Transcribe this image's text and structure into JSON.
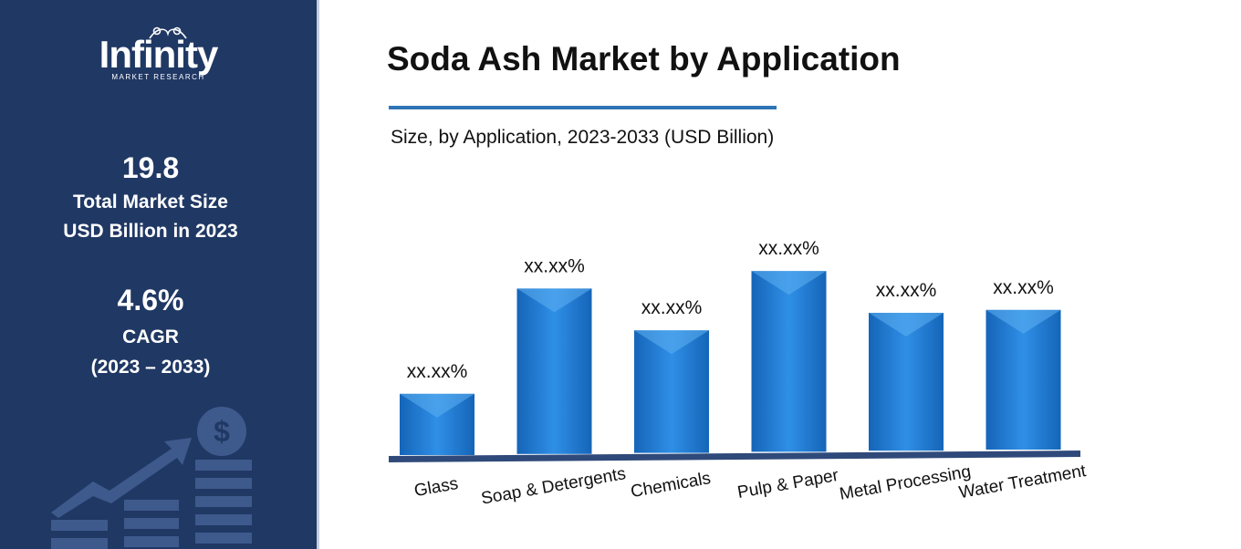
{
  "brand": {
    "name": "Infinity",
    "tagline": "MARKET RESEARCH"
  },
  "stats": {
    "market_size_value": "19.8",
    "market_size_line1": "Total Market Size",
    "market_size_line2": "USD Billion in 2023",
    "cagr_value": "4.6%",
    "cagr_label": "CAGR",
    "cagr_period": "(2023 – 2033)"
  },
  "icons": {
    "finance": "dollar-growth-chart-icon",
    "logo": "infinity-logo-icon"
  },
  "colors": {
    "sidebar": "#203864",
    "bar": "#1f77d0",
    "bar_light": "#4aa3ef",
    "axis": "#2f4a7a",
    "rule": "#2e75b6"
  },
  "chart_data": {
    "type": "bar",
    "title": "Soda Ash Market by Application",
    "subtitle": "Size, by Application, 2023-2033 (USD Billion)",
    "categories": [
      "Glass",
      "Soap & Detergents",
      "Chemicals",
      "Pulp & Paper",
      "Metal Processing",
      "Water Treatment"
    ],
    "values": [
      10,
      27,
      20,
      29.5,
      22.5,
      22.8
    ],
    "data_labels": [
      "xx.xx%",
      "xx.xx%",
      "xx.xx%",
      "xx.xx%",
      "xx.xx%",
      "xx.xx%"
    ],
    "ylim": [
      0,
      32
    ],
    "grid": false,
    "legend": "none"
  }
}
